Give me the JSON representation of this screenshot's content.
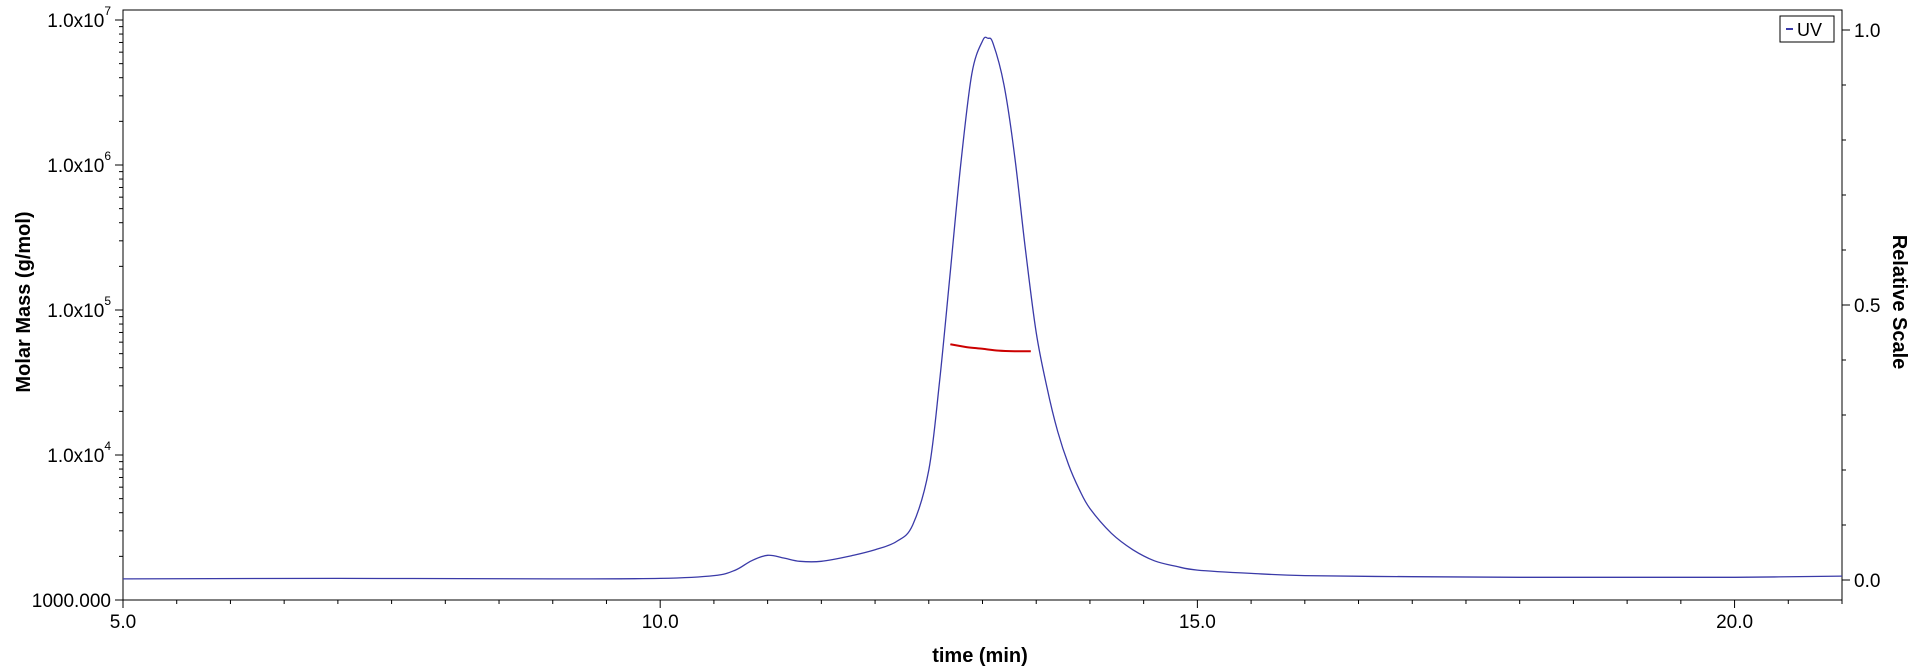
{
  "chart_data": {
    "type": "line",
    "xlabel": "time (min)",
    "ylabel_left": "Molar Mass (g/mol)",
    "ylabel_right": "Relative Scale",
    "xlim": [
      5.0,
      21.0
    ],
    "x_ticks": [
      5.0,
      10.0,
      15.0,
      20.0
    ],
    "x_tick_labels": [
      "5.0",
      "10.0",
      "15.0",
      "20.0"
    ],
    "y_left_scale": "log",
    "y_left_lim": [
      1000,
      10000000
    ],
    "y_left_ticks": [
      {
        "value": 1000,
        "base": "1000.000",
        "exp": ""
      },
      {
        "value": 10000,
        "base": "1.0x10",
        "exp": "4"
      },
      {
        "value": 100000,
        "base": "1.0x10",
        "exp": "5"
      },
      {
        "value": 1000000,
        "base": "1.0x10",
        "exp": "6"
      },
      {
        "value": 10000000,
        "base": "1.0x10",
        "exp": "7"
      }
    ],
    "y_right_lim": [
      0.0,
      1.03
    ],
    "y_right_ticks": [
      0.0,
      0.5,
      1.0
    ],
    "y_right_tick_labels": [
      "0.0",
      "0.5",
      "1.0"
    ],
    "legend": {
      "position": "top-right",
      "entries": [
        "UV"
      ]
    },
    "grid": false,
    "series": [
      {
        "name": "UV",
        "axis": "right",
        "color": "#3a3aa8",
        "x": [
          5.0,
          7.0,
          9.0,
          10.0,
          10.5,
          10.7,
          10.85,
          11.0,
          11.15,
          11.3,
          11.5,
          11.8,
          12.0,
          12.2,
          12.35,
          12.5,
          12.6,
          12.7,
          12.8,
          12.9,
          13.0,
          13.05,
          13.1,
          13.2,
          13.3,
          13.4,
          13.5,
          13.6,
          13.7,
          13.8,
          13.9,
          14.0,
          14.2,
          14.4,
          14.6,
          14.8,
          15.0,
          15.5,
          16.0,
          17.0,
          18.0,
          19.0,
          20.0,
          21.0
        ],
        "y": [
          0.002,
          0.003,
          0.002,
          0.003,
          0.008,
          0.018,
          0.035,
          0.045,
          0.04,
          0.034,
          0.034,
          0.045,
          0.055,
          0.07,
          0.1,
          0.2,
          0.36,
          0.56,
          0.76,
          0.92,
          0.98,
          0.985,
          0.975,
          0.9,
          0.77,
          0.6,
          0.45,
          0.35,
          0.27,
          0.21,
          0.165,
          0.13,
          0.085,
          0.055,
          0.035,
          0.025,
          0.018,
          0.012,
          0.008,
          0.006,
          0.005,
          0.005,
          0.005,
          0.007
        ]
      },
      {
        "name": "Molar Mass",
        "axis": "left",
        "color": "#cc0000",
        "x": [
          12.7,
          12.85,
          13.0,
          13.15,
          13.3,
          13.45
        ],
        "y": [
          58000,
          55500,
          54000,
          52500,
          52000,
          52000
        ]
      }
    ]
  }
}
